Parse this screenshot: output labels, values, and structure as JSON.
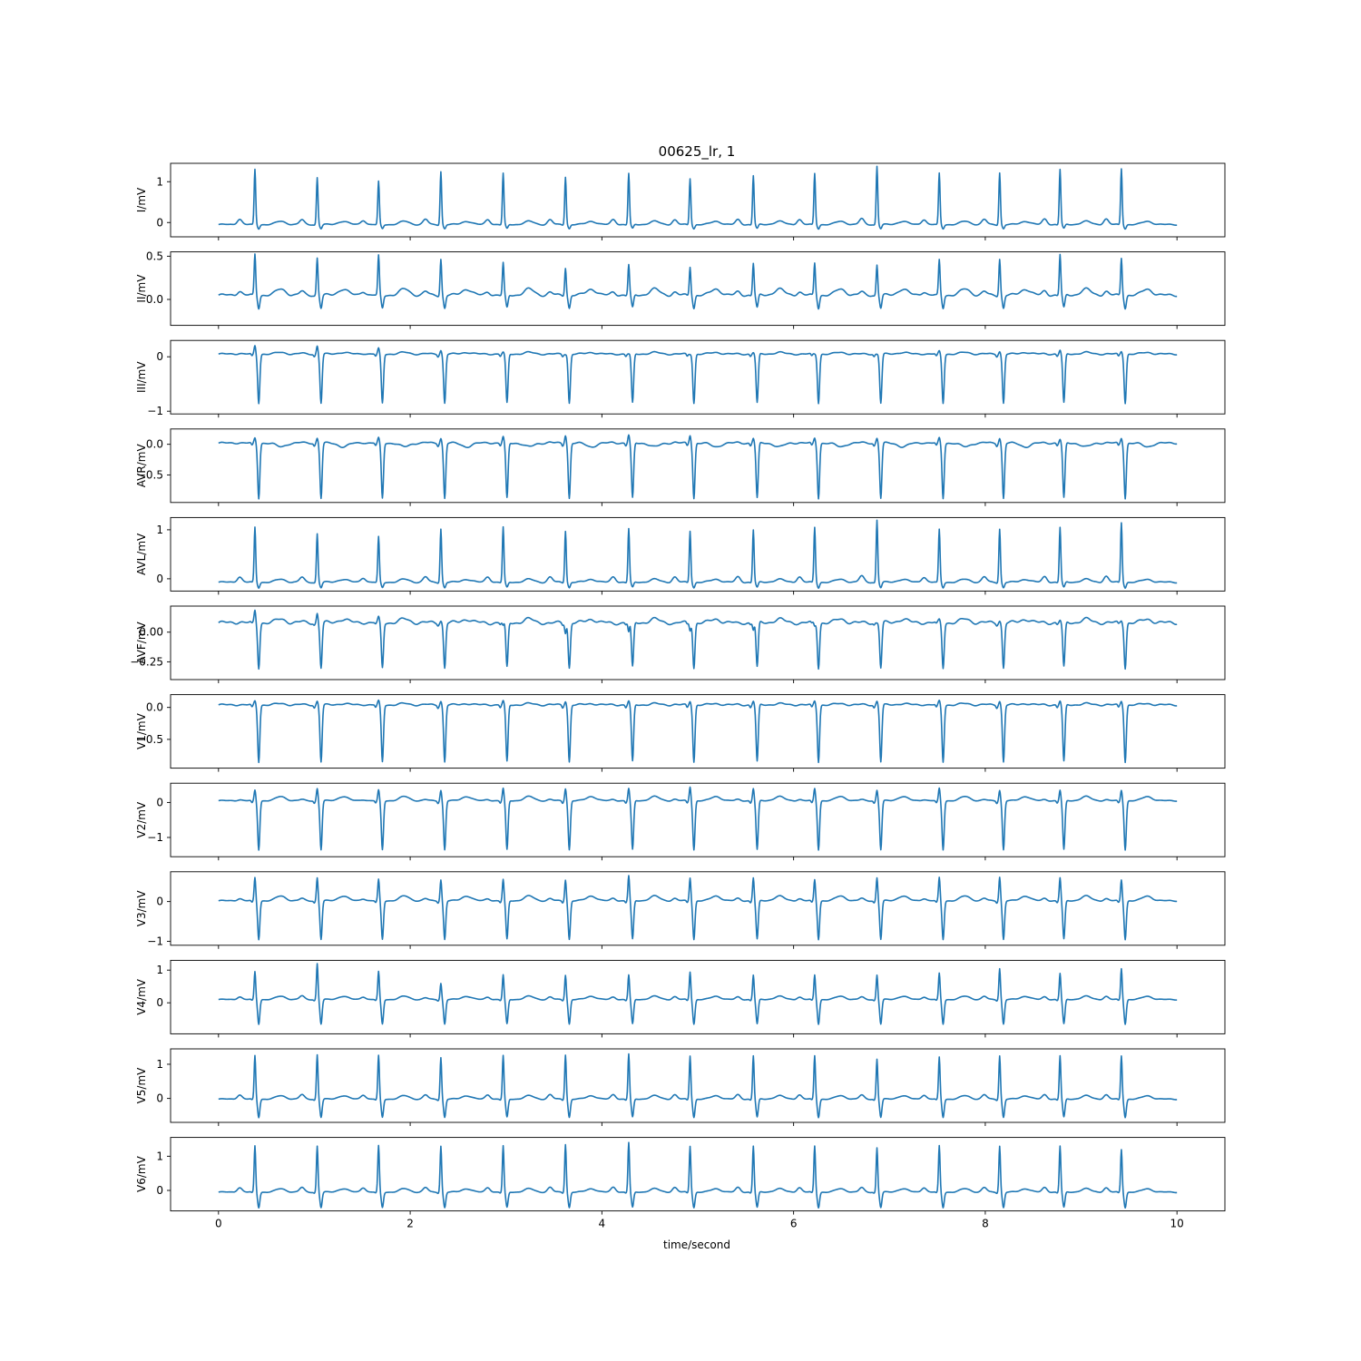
{
  "chart_data": {
    "type": "line",
    "title": "00625_lr,  1",
    "xlabel": "time/second",
    "xlim": [
      -0.5,
      10.5
    ],
    "xticks": [
      0,
      2,
      4,
      6,
      8,
      10
    ],
    "xtick_labels": [
      "0",
      "2",
      "4",
      "6",
      "8",
      "10"
    ],
    "grid": false,
    "line_color": "#1f77b4",
    "beat_times": [
      0.38,
      1.03,
      1.67,
      2.32,
      2.97,
      3.62,
      4.28,
      4.92,
      5.58,
      6.22,
      6.87,
      7.52,
      8.15,
      8.78,
      9.42
    ],
    "leads": [
      {
        "name": "I",
        "ylabel": "I/mV",
        "ylim": [
          -0.35,
          1.45
        ],
        "yticks": [
          0,
          1
        ],
        "ytick_labels": [
          "0",
          "1"
        ],
        "baseline": -0.05,
        "r_peaks": [
          1.3,
          1.1,
          1.0,
          1.25,
          1.2,
          1.12,
          1.2,
          1.08,
          1.15,
          1.2,
          1.38,
          1.2,
          1.22,
          1.3,
          1.32
        ],
        "s_depth": -0.15,
        "t_amp": 0.08
      },
      {
        "name": "II",
        "ylabel": "II/mV",
        "ylim": [
          -0.3,
          0.55
        ],
        "yticks": [
          0.0,
          0.5
        ],
        "ytick_labels": [
          "0.0",
          "0.5"
        ],
        "baseline": 0.05,
        "r_peaks": [
          0.52,
          0.48,
          0.5,
          0.47,
          0.42,
          0.37,
          0.4,
          0.38,
          0.42,
          0.42,
          0.4,
          0.45,
          0.47,
          0.52,
          0.48
        ],
        "s_depth": -0.1,
        "t_amp": 0.07
      },
      {
        "name": "III",
        "ylabel": "III/mV",
        "ylim": [
          -1.05,
          0.3
        ],
        "yticks": [
          0,
          -1
        ],
        "ytick_labels": [
          "0",
          "−1"
        ],
        "baseline": 0.05,
        "r_peaks": [
          0.2,
          0.2,
          0.15,
          0.12,
          0.08,
          0.05,
          0.05,
          0.05,
          0.08,
          0.05,
          0.05,
          0.1,
          0.1,
          0.12,
          0.1
        ],
        "s_depth": -0.85,
        "t_amp": 0.03
      },
      {
        "name": "AVR",
        "ylabel": "AVR/mV",
        "ylim": [
          -0.95,
          0.25
        ],
        "yticks": [
          0.0,
          -0.5
        ],
        "ytick_labels": [
          "0.0",
          "−0.5"
        ],
        "baseline": 0.02,
        "r_peaks": [
          0.1,
          0.1,
          0.1,
          0.1,
          0.12,
          0.15,
          0.15,
          0.15,
          0.1,
          0.1,
          0.1,
          0.1,
          0.1,
          0.08,
          0.1
        ],
        "s_depth": -0.88,
        "t_amp": -0.06
      },
      {
        "name": "AVL",
        "ylabel": "AVL/mV",
        "ylim": [
          -0.25,
          1.25
        ],
        "yticks": [
          0,
          1
        ],
        "ytick_labels": [
          "0",
          "1"
        ],
        "baseline": -0.07,
        "r_peaks": [
          1.05,
          0.92,
          0.85,
          1.02,
          1.05,
          0.98,
          1.02,
          0.98,
          1.0,
          1.05,
          1.2,
          1.0,
          1.02,
          1.05,
          1.15
        ],
        "s_depth": -0.18,
        "t_amp": 0.06
      },
      {
        "name": "AVF",
        "ylabel": "AVF/mV",
        "ylim": [
          -0.4,
          0.22
        ],
        "yticks": [
          0.0,
          -0.25
        ],
        "ytick_labels": [
          "0.00",
          "−0.25"
        ],
        "baseline": 0.08,
        "r_peaks": [
          0.18,
          0.16,
          0.12,
          0.1,
          0.05,
          0.0,
          0.0,
          0.02,
          0.02,
          0.05,
          0.08,
          0.1,
          0.1,
          0.1,
          0.1
        ],
        "s_depth": -0.3,
        "t_amp": 0.03
      },
      {
        "name": "V1",
        "ylabel": "V1/mV",
        "ylim": [
          -0.95,
          0.2
        ],
        "yticks": [
          0.0,
          -0.5
        ],
        "ytick_labels": [
          "0.0",
          "−0.5"
        ],
        "baseline": 0.04,
        "r_peaks": [
          0.1,
          0.1,
          0.1,
          0.1,
          0.1,
          0.1,
          0.1,
          0.1,
          0.1,
          0.1,
          0.1,
          0.1,
          0.1,
          0.1,
          0.1
        ],
        "s_depth": -0.85,
        "t_amp": 0.02
      },
      {
        "name": "V2",
        "ylabel": "V2/mV",
        "ylim": [
          -1.55,
          0.55
        ],
        "yticks": [
          0,
          -1
        ],
        "ytick_labels": [
          "0",
          "−1"
        ],
        "baseline": 0.05,
        "r_peaks": [
          0.35,
          0.4,
          0.35,
          0.35,
          0.4,
          0.4,
          0.4,
          0.45,
          0.4,
          0.4,
          0.35,
          0.4,
          0.35,
          0.35,
          0.35
        ],
        "s_depth": -1.35,
        "t_amp": 0.12
      },
      {
        "name": "V3",
        "ylabel": "V3/mV",
        "ylim": [
          -1.1,
          0.75
        ],
        "yticks": [
          0,
          -1
        ],
        "ytick_labels": [
          "0",
          "−1"
        ],
        "baseline": 0.02,
        "r_peaks": [
          0.6,
          0.6,
          0.55,
          0.55,
          0.55,
          0.55,
          0.65,
          0.6,
          0.6,
          0.55,
          0.6,
          0.6,
          0.62,
          0.6,
          0.55
        ],
        "s_depth": -0.95,
        "t_amp": 0.12
      },
      {
        "name": "V4",
        "ylabel": "V4/mV",
        "ylim": [
          -0.95,
          1.3
        ],
        "yticks": [
          0,
          1
        ],
        "ytick_labels": [
          "0",
          "1"
        ],
        "baseline": 0.1,
        "r_peaks": [
          0.95,
          1.2,
          0.95,
          0.6,
          0.85,
          0.85,
          0.85,
          0.95,
          0.85,
          0.85,
          0.85,
          0.9,
          1.05,
          0.9,
          1.05
        ],
        "s_depth": -0.65,
        "t_amp": 0.1
      },
      {
        "name": "V5",
        "ylabel": "V5/mV",
        "ylim": [
          -0.7,
          1.45
        ],
        "yticks": [
          0,
          1
        ],
        "ytick_labels": [
          "0",
          "1"
        ],
        "baseline": -0.02,
        "r_peaks": [
          1.25,
          1.28,
          1.25,
          1.2,
          1.25,
          1.28,
          1.3,
          1.25,
          1.25,
          1.25,
          1.15,
          1.2,
          1.25,
          1.25,
          1.25
        ],
        "s_depth": -0.55,
        "t_amp": 0.1
      },
      {
        "name": "V6",
        "ylabel": "V6/mV",
        "ylim": [
          -0.6,
          1.55
        ],
        "yticks": [
          0,
          1
        ],
        "ytick_labels": [
          "0",
          "1"
        ],
        "baseline": -0.05,
        "r_peaks": [
          1.3,
          1.3,
          1.3,
          1.3,
          1.3,
          1.35,
          1.4,
          1.3,
          1.3,
          1.3,
          1.25,
          1.3,
          1.3,
          1.3,
          1.2
        ],
        "s_depth": -0.5,
        "t_amp": 0.1
      }
    ]
  }
}
